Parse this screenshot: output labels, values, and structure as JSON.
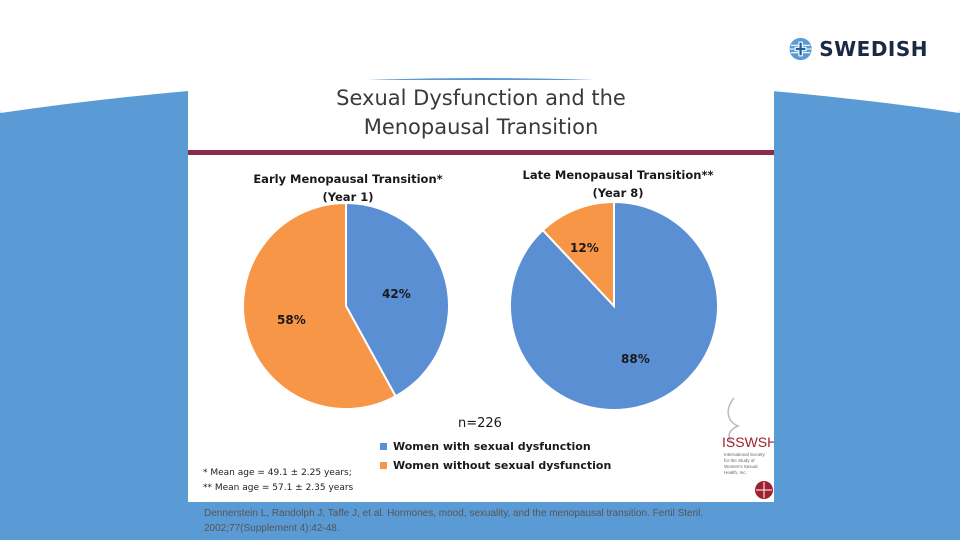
{
  "logo": {
    "text": "SWEDISH",
    "icon": "swedish-cross-globe-icon"
  },
  "slide": {
    "title_line1": "Sexual Dysfunction and the",
    "title_line2": "Menopausal Transition",
    "n_label": "n=226",
    "notes": [
      "* Mean age = 49.1 ± 2.25 years;",
      "** Mean age = 57.1 ± 2.35 years"
    ],
    "badge": {
      "name": "ISSWSH",
      "subtitle": "International Society for the Study of Women's Sexual Health, Inc."
    }
  },
  "colors": {
    "blue": "#5a8fd4",
    "orange": "#f79646",
    "accent": "#8b2a4a",
    "band": "#5b9bd5"
  },
  "chart_data": [
    {
      "type": "pie",
      "title_line1": "Early Menopausal Transition*",
      "title_line2": "(Year 1)",
      "labels": [
        "Women with sexual dysfunction",
        "Women without sexual dysfunction"
      ],
      "values": [
        42,
        58
      ],
      "value_labels": [
        "42%",
        "58%"
      ]
    },
    {
      "type": "pie",
      "title_line1": "Late Menopausal Transition**",
      "title_line2": "(Year 8)",
      "labels": [
        "Women with sexual dysfunction",
        "Women without sexual dysfunction"
      ],
      "values": [
        88,
        12
      ],
      "value_labels": [
        "88%",
        "12%"
      ]
    }
  ],
  "legend": [
    {
      "label": "Women with sexual dysfunction",
      "color": "#5a8fd4"
    },
    {
      "label": "Women without sexual dysfunction",
      "color": "#f79646"
    }
  ],
  "citation_line1": "Dennerstein L, Randolph J, Taffe J, et al. Hormones, mood, sexuality, and the menopausal transition. Fertil Steril.",
  "citation_line2": "2002;77(Supplement 4):42-48."
}
